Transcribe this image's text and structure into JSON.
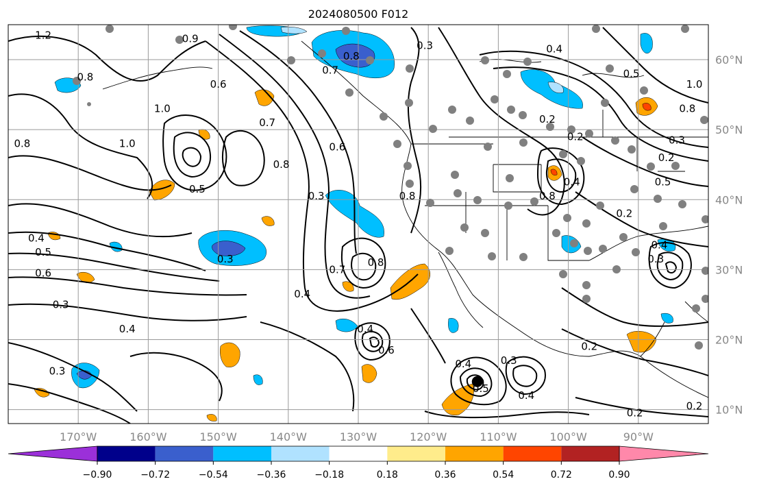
{
  "title": "2024080500 F012",
  "map": {
    "lon_range": [
      -180,
      -80
    ],
    "lat_range": [
      8,
      65
    ],
    "lon_ticks": [
      {
        "lon": -170,
        "label": "170°W"
      },
      {
        "lon": -160,
        "label": "160°W"
      },
      {
        "lon": -150,
        "label": "150°W"
      },
      {
        "lon": -140,
        "label": "140°W"
      },
      {
        "lon": -130,
        "label": "130°W"
      },
      {
        "lon": -120,
        "label": "120°W"
      },
      {
        "lon": -110,
        "label": "110°W"
      },
      {
        "lon": -100,
        "label": "100°W"
      },
      {
        "lon": -90,
        "label": "90°W"
      }
    ],
    "lat_ticks": [
      {
        "lat": 10,
        "label": "10°N"
      },
      {
        "lat": 20,
        "label": "20°N"
      },
      {
        "lat": 30,
        "label": "30°N"
      },
      {
        "lat": 40,
        "label": "40°N"
      },
      {
        "lat": 50,
        "label": "50°N"
      },
      {
        "lat": 60,
        "label": "60°N"
      }
    ],
    "grid": true,
    "marker": {
      "lon": -113,
      "lat": 14
    }
  },
  "colorbar": {
    "colors": [
      "#9b30d9",
      "#00008b",
      "#3a5fcd",
      "#00bfff",
      "#b0e2ff",
      "#ffffff",
      "#ffec8b",
      "#ffa500",
      "#ff4500",
      "#b22222",
      "#ff88aa"
    ],
    "ticks": [
      "−0.90",
      "−0.72",
      "−0.54",
      "−0.36",
      "−0.18",
      "0.18",
      "0.36",
      "0.54",
      "0.72",
      "0.90"
    ]
  },
  "contour_labels": [
    {
      "lon": -175,
      "lat": 63.5,
      "text": "1.2"
    },
    {
      "lon": -154,
      "lat": 63,
      "text": "0.9"
    },
    {
      "lon": -169,
      "lat": 57.5,
      "text": "0.8"
    },
    {
      "lon": -150,
      "lat": 56.5,
      "text": "0.6"
    },
    {
      "lon": -158,
      "lat": 53,
      "text": "1.0"
    },
    {
      "lon": -178,
      "lat": 48,
      "text": "0.8"
    },
    {
      "lon": -163,
      "lat": 48,
      "text": "1.0"
    },
    {
      "lon": -153,
      "lat": 41.5,
      "text": "0.5"
    },
    {
      "lon": -143,
      "lat": 51,
      "text": "0.7"
    },
    {
      "lon": -131,
      "lat": 60.5,
      "text": "0.8"
    },
    {
      "lon": -134,
      "lat": 58.5,
      "text": "0.7"
    },
    {
      "lon": -120.5,
      "lat": 62,
      "text": "0.3"
    },
    {
      "lon": -141,
      "lat": 45,
      "text": "0.8"
    },
    {
      "lon": -136,
      "lat": 40.5,
      "text": "0.3"
    },
    {
      "lon": -133,
      "lat": 47.5,
      "text": "0.6"
    },
    {
      "lon": -176,
      "lat": 34.5,
      "text": "0.4"
    },
    {
      "lon": -175,
      "lat": 32.5,
      "text": "0.5"
    },
    {
      "lon": -175,
      "lat": 29.5,
      "text": "0.6"
    },
    {
      "lon": -172.5,
      "lat": 25,
      "text": "0.3"
    },
    {
      "lon": -149,
      "lat": 31.5,
      "text": "0.3"
    },
    {
      "lon": -138,
      "lat": 26.5,
      "text": "0.4"
    },
    {
      "lon": -133,
      "lat": 30,
      "text": "0.7"
    },
    {
      "lon": -127.5,
      "lat": 31,
      "text": "0.8"
    },
    {
      "lon": -173,
      "lat": 15.5,
      "text": "0.3"
    },
    {
      "lon": -163,
      "lat": 21.5,
      "text": "0.4"
    },
    {
      "lon": -129,
      "lat": 21.5,
      "text": "0.4"
    },
    {
      "lon": -126,
      "lat": 18.5,
      "text": "0.6"
    },
    {
      "lon": -123,
      "lat": 40.5,
      "text": "0.8"
    },
    {
      "lon": -115,
      "lat": 16.5,
      "text": "0.4"
    },
    {
      "lon": -108.5,
      "lat": 17,
      "text": "0.3"
    },
    {
      "lon": -112.5,
      "lat": 13,
      "text": "0.5"
    },
    {
      "lon": -106,
      "lat": 12,
      "text": "0.4"
    },
    {
      "lon": -102,
      "lat": 61.5,
      "text": "0.4"
    },
    {
      "lon": -103,
      "lat": 51.5,
      "text": "0.2"
    },
    {
      "lon": -99,
      "lat": 49,
      "text": "0.2"
    },
    {
      "lon": -99.5,
      "lat": 42.5,
      "text": "0.4"
    },
    {
      "lon": -103,
      "lat": 40.5,
      "text": "0.8"
    },
    {
      "lon": -92,
      "lat": 38,
      "text": "0.2"
    },
    {
      "lon": -91,
      "lat": 58,
      "text": "0.5"
    },
    {
      "lon": -82,
      "lat": 56.5,
      "text": "1.0"
    },
    {
      "lon": -83,
      "lat": 53,
      "text": "0.8"
    },
    {
      "lon": -84.5,
      "lat": 48.5,
      "text": "0.3"
    },
    {
      "lon": -86.5,
      "lat": 42.5,
      "text": "0.5"
    },
    {
      "lon": -86,
      "lat": 46,
      "text": "0.2"
    },
    {
      "lon": -87,
      "lat": 33.5,
      "text": "0.4"
    },
    {
      "lon": -87.5,
      "lat": 31.5,
      "text": "0.3"
    },
    {
      "lon": -97,
      "lat": 19,
      "text": "0.2"
    },
    {
      "lon": -90.5,
      "lat": 9.5,
      "text": "0.2"
    },
    {
      "lon": -82,
      "lat": 10.5,
      "text": "0.2"
    }
  ]
}
